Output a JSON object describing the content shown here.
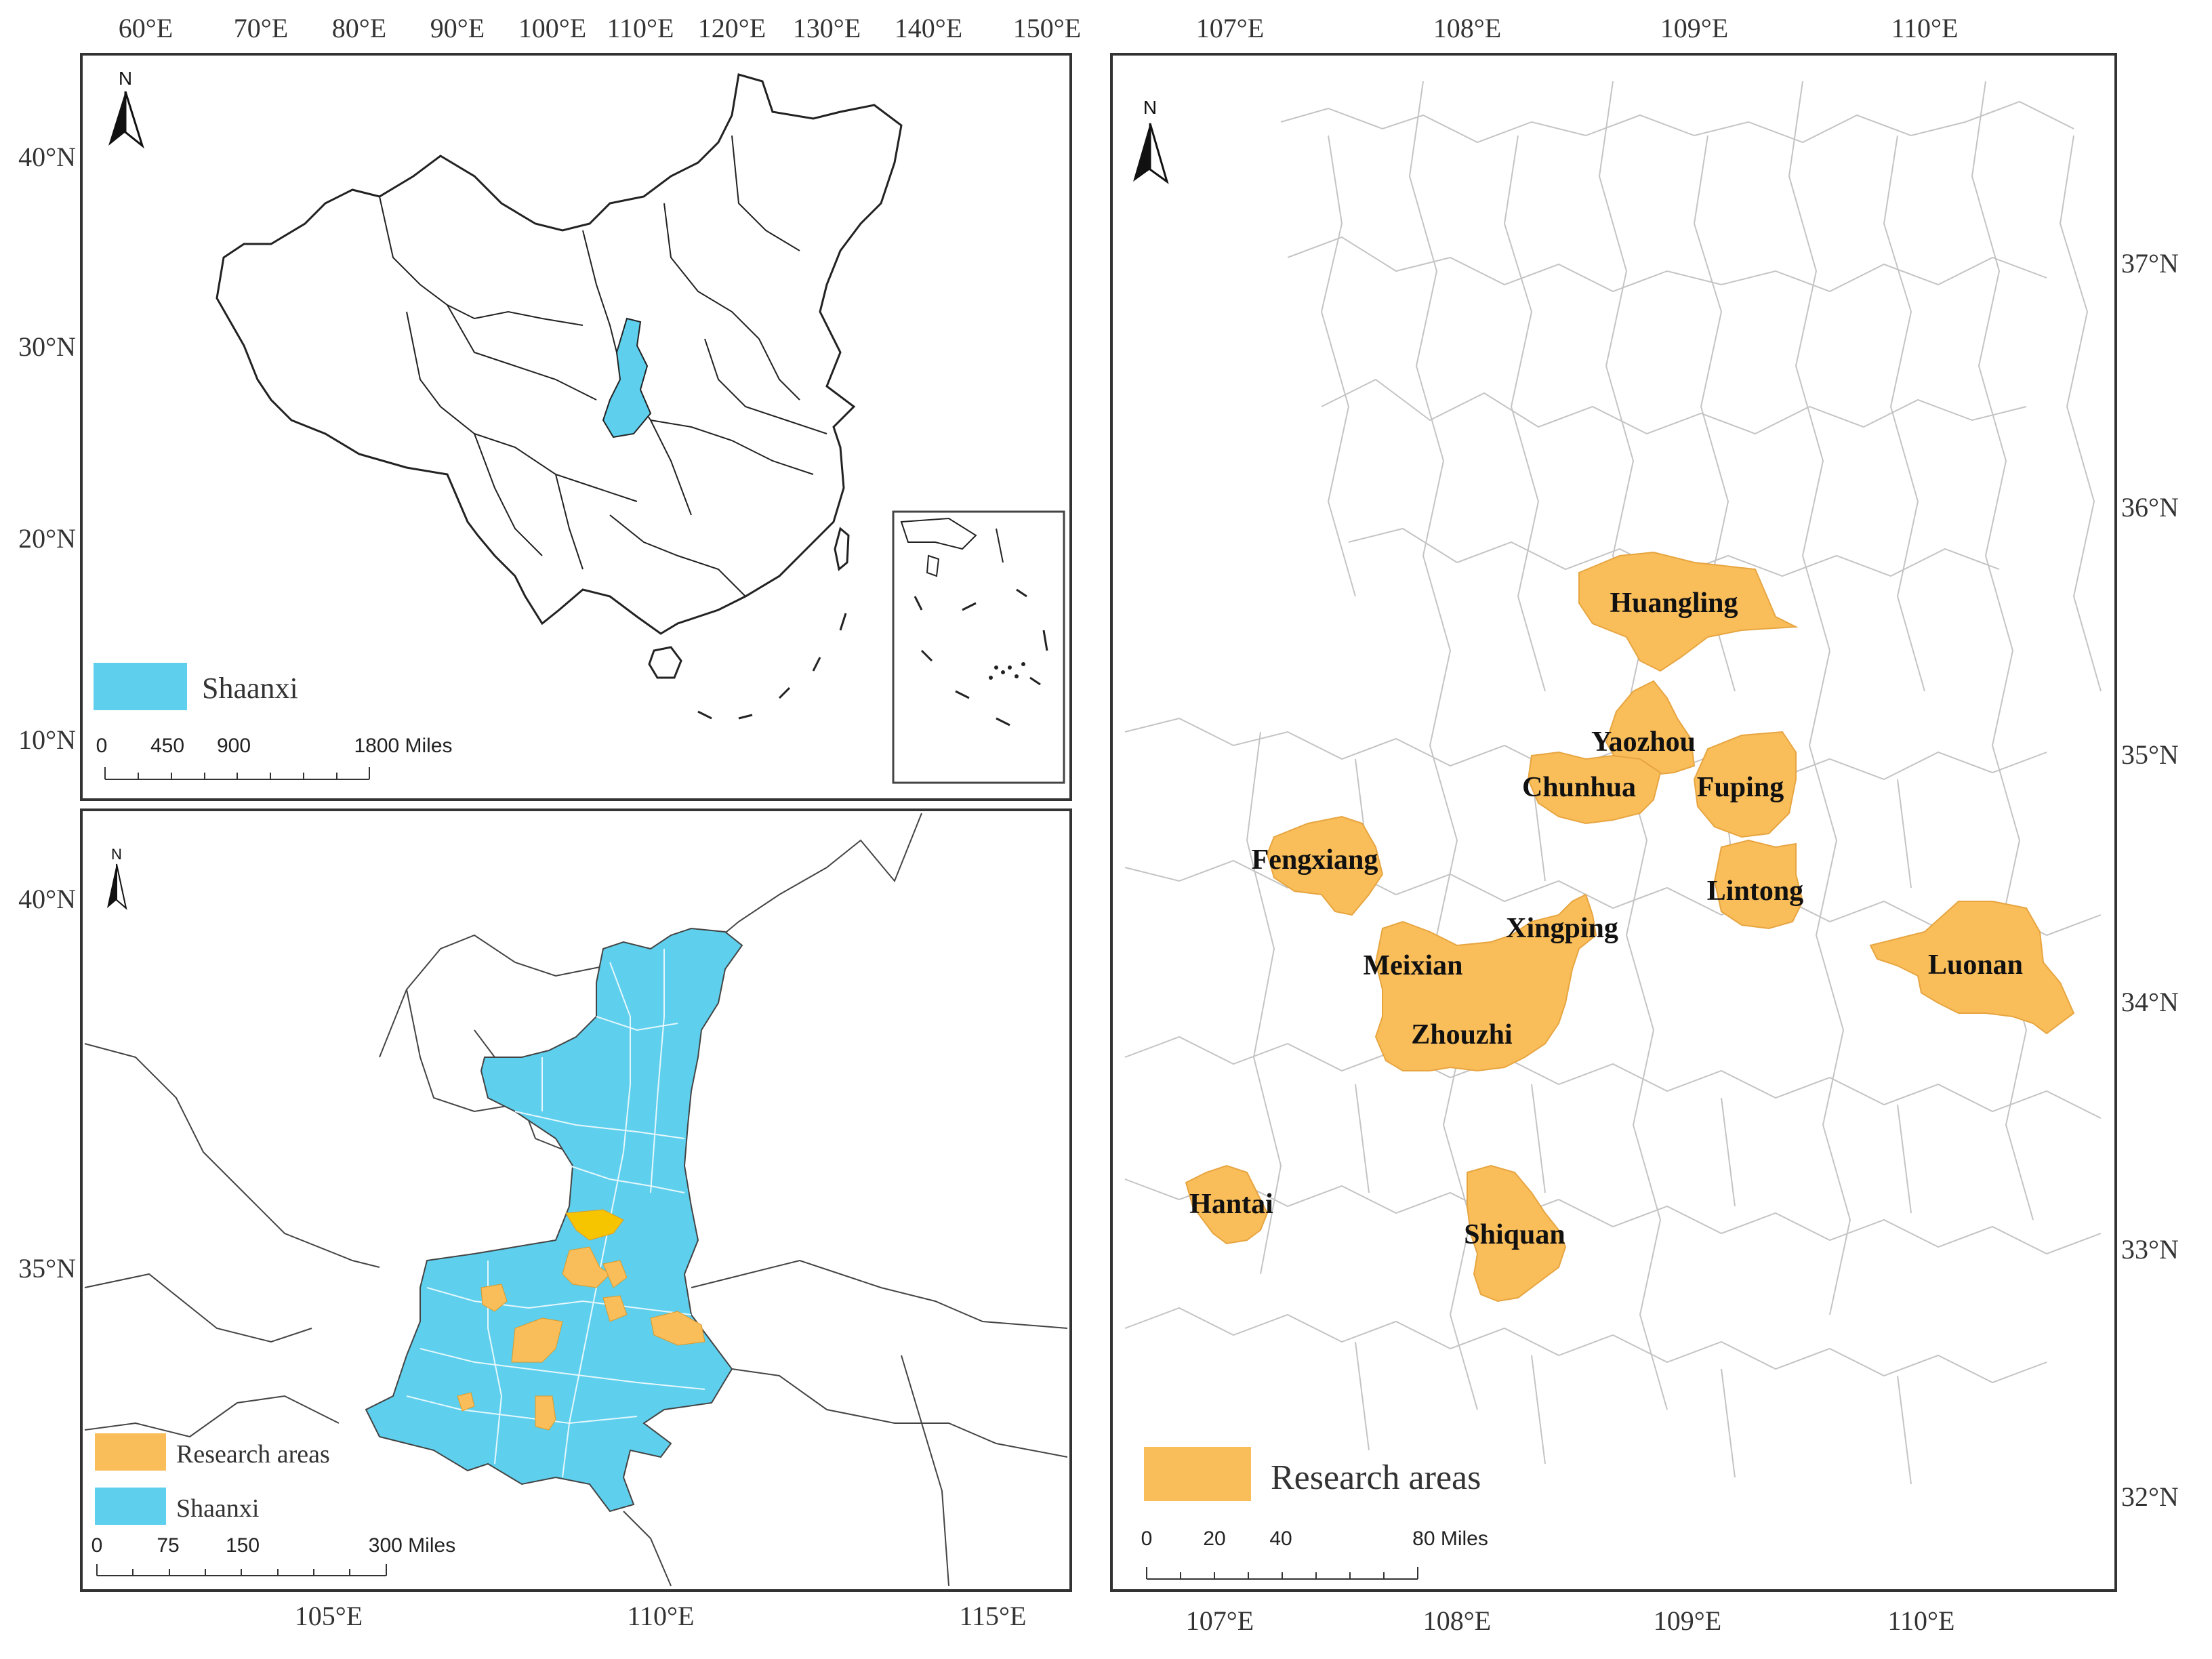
{
  "colors": {
    "shaanxi": "#5ed0ee",
    "research": "#f9bd5a",
    "research_highlight": "#f7c400",
    "frame": "#333333",
    "boundary": "#222222",
    "boundary_light": "#bbbbbb"
  },
  "north_arrow_label": "N",
  "panel_china": {
    "lon_ticks": [
      "60°E",
      "70°E",
      "80°E",
      "90°E",
      "100°E",
      "110°E",
      "120°E",
      "130°E",
      "140°E",
      "150°E"
    ],
    "lat_ticks": [
      "40°N",
      "30°N",
      "20°N",
      "10°N"
    ],
    "legend": [
      {
        "label": "Shaanxi",
        "color": "#5ed0ee"
      }
    ],
    "scale": {
      "labels": [
        "0",
        "450",
        "900",
        "1800 Miles"
      ]
    }
  },
  "panel_shaanxi": {
    "lon_ticks": [
      "105°E",
      "110°E",
      "115°E"
    ],
    "lat_ticks": [
      "40°N",
      "35°N"
    ],
    "legend": [
      {
        "label": "Research areas",
        "color": "#f9bd5a"
      },
      {
        "label": "Shaanxi",
        "color": "#5ed0ee"
      }
    ],
    "scale": {
      "labels": [
        "0",
        "75",
        "150",
        "300 Miles"
      ]
    }
  },
  "panel_detail": {
    "lon_ticks": [
      "107°E",
      "108°E",
      "109°E",
      "110°E"
    ],
    "lat_ticks": [
      "37°N",
      "36°N",
      "35°N",
      "34°N",
      "33°N",
      "32°N"
    ],
    "legend": [
      {
        "label": "Research areas",
        "color": "#f9bd5a"
      }
    ],
    "scale": {
      "labels": [
        "0",
        "20",
        "40",
        "80 Miles"
      ]
    },
    "places": [
      "Huangling",
      "Yaozhou",
      "Chunhua",
      "Fuping",
      "Fengxiang",
      "Lintong",
      "Xingping",
      "Meixian",
      "Luonan",
      "Zhouzhi",
      "Hantai",
      "Shiquan"
    ]
  }
}
